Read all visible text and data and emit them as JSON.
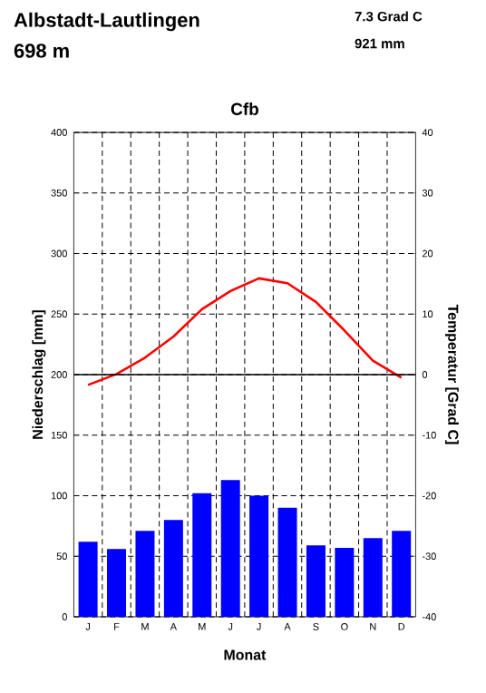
{
  "chart_data": {
    "type": "bar",
    "title": "Albstadt-Lautlingen",
    "subtitle": "698 m",
    "annotations": [
      "7.3 Grad C",
      "921 mm",
      "Cfb"
    ],
    "xlabel": "Monat",
    "ylabel": "Niederschlag [mm]",
    "y2label": "Temperatur [Grad C]",
    "categories": [
      "J",
      "F",
      "M",
      "A",
      "M",
      "J",
      "J",
      "A",
      "S",
      "O",
      "N",
      "D"
    ],
    "series": [
      {
        "color": "#0000ff",
        "values": [
          62,
          56,
          71,
          80,
          102,
          113,
          100,
          90,
          59,
          57,
          65,
          71
        ]
      },
      {
        "type": "line",
        "axis": "y2",
        "color": "#ff0000",
        "values": [
          -1.7,
          0.1,
          2.8,
          6.3,
          10.8,
          13.8,
          15.9,
          15.1,
          12,
          7.3,
          2.3,
          -0.5
        ]
      }
    ],
    "ylim": [
      0,
      400
    ],
    "yticks": [
      0,
      50,
      100,
      150,
      200,
      250,
      300,
      350,
      400
    ],
    "y2lim": [
      -40,
      40
    ],
    "y2ticks": [
      -40,
      -30,
      -20,
      -10,
      0,
      10,
      20,
      30,
      40
    ],
    "ref_lines": [
      {
        "axis": "y2",
        "value": 0,
        "color": "#000000",
        "line_style": "solid"
      }
    ],
    "grid": true,
    "marker": "none",
    "line_style": "solid"
  }
}
